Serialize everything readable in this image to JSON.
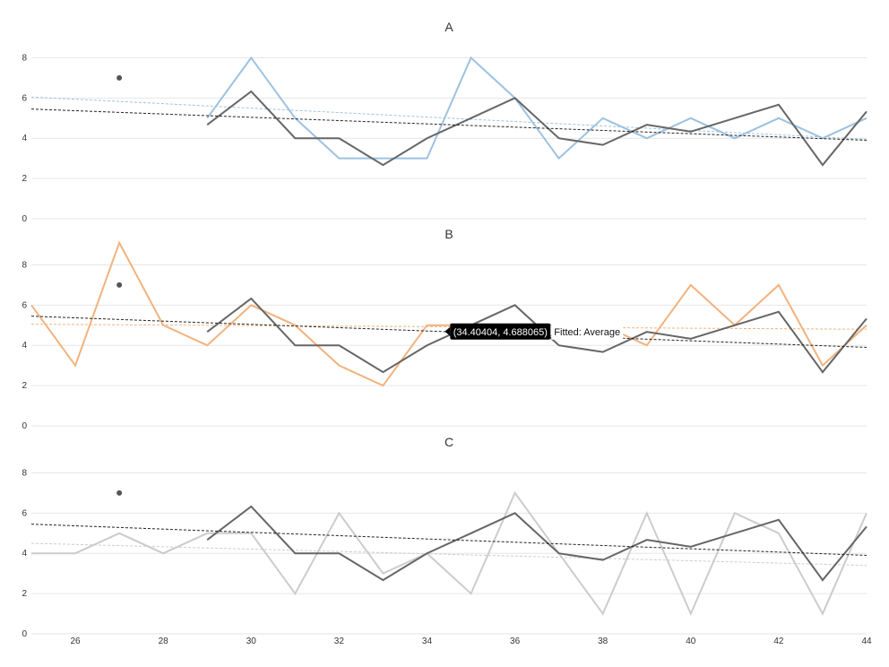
{
  "chart_data": {
    "type": "line",
    "x_ticks": [
      26,
      28,
      30,
      32,
      34,
      36,
      38,
      40,
      42,
      44
    ],
    "xlim": [
      25,
      44
    ],
    "ylim": [
      0,
      9
    ],
    "y_ticks": [
      0,
      2,
      4,
      6,
      8
    ],
    "grid": true,
    "average_series": {
      "x": [
        29,
        30,
        31,
        32,
        33,
        34,
        35,
        36,
        37,
        38,
        39,
        40,
        41,
        42,
        43,
        44
      ],
      "values": [
        4.67,
        6.33,
        4.0,
        4.0,
        2.67,
        4.0,
        5.0,
        6.0,
        4.0,
        3.67,
        4.67,
        4.33,
        5.0,
        5.67,
        2.67,
        5.33
      ],
      "color": "#666666"
    },
    "average_fit": {
      "x": [
        25,
        44
      ],
      "values": [
        5.45,
        3.9
      ]
    },
    "outlier_marker": {
      "x": 27,
      "y": 7
    },
    "panels": [
      {
        "title": "A",
        "color": "#9ec2e0",
        "x": [
          29,
          30,
          31,
          32,
          33,
          34,
          35,
          36,
          37,
          38,
          39,
          40,
          41,
          42,
          43,
          44
        ],
        "values": [
          5,
          8,
          5,
          3,
          3,
          3,
          8,
          6,
          3,
          5,
          4,
          5,
          4,
          5,
          4,
          5
        ],
        "fit": {
          "x": [
            25,
            44
          ],
          "values": [
            6.05,
            3.95
          ]
        }
      },
      {
        "title": "B",
        "color": "#f2b27e",
        "x": [
          25,
          26,
          27,
          28,
          29,
          30,
          31,
          32,
          33,
          34,
          35,
          36,
          37,
          38,
          39,
          40,
          41,
          42,
          43,
          44
        ],
        "values": [
          6,
          3,
          9.1,
          5,
          4,
          6,
          5,
          3,
          2,
          5,
          5,
          5,
          5,
          5,
          4,
          7,
          5,
          7,
          3,
          5
        ],
        "fit": {
          "x": [
            25,
            44
          ],
          "values": [
            5.05,
            4.8
          ]
        }
      },
      {
        "title": "C",
        "color": "#cccccc",
        "x": [
          25,
          26,
          27,
          28,
          29,
          30,
          31,
          32,
          33,
          34,
          35,
          36,
          37,
          38,
          39,
          40,
          41,
          42,
          43,
          44
        ],
        "values": [
          4,
          4,
          5,
          4,
          5,
          5,
          2,
          6,
          3,
          4,
          2,
          7,
          4,
          1,
          6,
          1,
          6,
          5,
          1,
          6
        ],
        "fit": {
          "x": [
            25,
            44
          ],
          "values": [
            4.5,
            3.4
          ]
        }
      }
    ],
    "tooltip": {
      "panel": 1,
      "x": 34.40404,
      "y": 4.688065,
      "text": "(34.40404, 4.688065)",
      "label": "Fitted: Average"
    }
  }
}
